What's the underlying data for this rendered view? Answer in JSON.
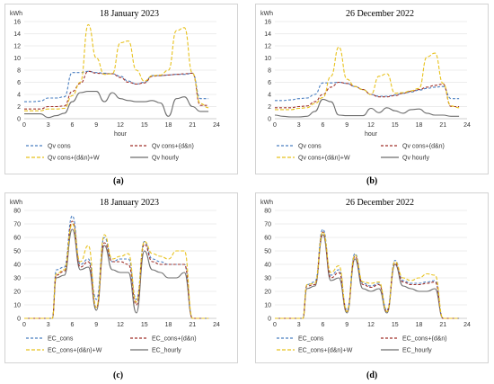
{
  "chart_data": [
    {
      "type": "line",
      "panel_label": "(a)",
      "title": "18 January 2023",
      "unit": "kWh",
      "xlabel": "hour",
      "xlim": [
        0,
        24
      ],
      "ylim": [
        0,
        16
      ],
      "xticks": [
        0,
        3,
        6,
        9,
        12,
        15,
        18,
        21,
        24
      ],
      "yticks": [
        0,
        2,
        4,
        6,
        8,
        10,
        12,
        14,
        16
      ],
      "legend_position": "bottom",
      "x": [
        0,
        1,
        2,
        3,
        4,
        5,
        6,
        7,
        8,
        9,
        10,
        11,
        12,
        13,
        14,
        15,
        16,
        17,
        18,
        19,
        20,
        21,
        22,
        23
      ],
      "series": [
        {
          "name": "Qv cons",
          "color": "#4a7fc1",
          "dash": "3,2",
          "values": [
            2.8,
            2.8,
            2.9,
            3.4,
            3.4,
            3.6,
            7.6,
            7.6,
            7.8,
            7.6,
            7.5,
            7.4,
            7.0,
            6.2,
            5.7,
            6.0,
            7.1,
            7.1,
            7.2,
            7.3,
            7.3,
            7.5,
            3.3,
            3.3
          ]
        },
        {
          "name": "Qv cons+(d&n)",
          "color": "#a0302a",
          "dash": "3,2",
          "values": [
            1.6,
            1.6,
            1.6,
            2.0,
            2.0,
            2.1,
            4.5,
            5.8,
            7.8,
            7.5,
            7.4,
            7.4,
            6.8,
            6.0,
            5.7,
            5.9,
            7.0,
            7.1,
            7.2,
            7.3,
            7.4,
            7.5,
            2.2,
            2.2
          ]
        },
        {
          "name": "Qv cons+(d&n)+W",
          "color": "#e8c21e",
          "dash": "4,2",
          "values": [
            1.3,
            1.3,
            1.3,
            1.6,
            1.6,
            1.7,
            3.8,
            6.0,
            15.5,
            10.0,
            7.3,
            7.4,
            12.5,
            12.8,
            8.0,
            6.2,
            7.1,
            7.2,
            8.0,
            14.5,
            15.0,
            7.5,
            2.5,
            1.8
          ]
        },
        {
          "name": "Qv hourly",
          "color": "#6e6e6e",
          "dash": "",
          "values": [
            0.8,
            0.8,
            0.8,
            0.2,
            0.5,
            0.9,
            2.8,
            4.3,
            4.5,
            4.5,
            2.8,
            4.3,
            3.3,
            3.0,
            2.8,
            2.8,
            3.0,
            2.6,
            0.4,
            3.3,
            3.6,
            2.0,
            1.2,
            1.2
          ]
        }
      ]
    },
    {
      "type": "line",
      "panel_label": "(b)",
      "title": "26 December 2022",
      "unit": "kWh",
      "xlabel": "hour",
      "xlim": [
        0,
        24
      ],
      "ylim": [
        0,
        16
      ],
      "xticks": [
        0,
        3,
        6,
        9,
        12,
        15,
        18,
        21,
        24
      ],
      "yticks": [
        0,
        2,
        4,
        6,
        8,
        10,
        12,
        14,
        16
      ],
      "legend_position": "bottom",
      "x": [
        0,
        1,
        2,
        3,
        4,
        5,
        6,
        7,
        8,
        9,
        10,
        11,
        12,
        13,
        14,
        15,
        16,
        17,
        18,
        19,
        20,
        21,
        22,
        23
      ],
      "series": [
        {
          "name": "Qv cons",
          "color": "#4a7fc1",
          "dash": "3,2",
          "values": [
            3.0,
            3.0,
            3.1,
            3.3,
            3.4,
            4.0,
            5.9,
            5.9,
            6.0,
            5.8,
            5.3,
            4.8,
            4.0,
            3.7,
            3.7,
            3.9,
            4.2,
            4.4,
            4.7,
            5.0,
            5.2,
            5.3,
            3.3,
            3.3
          ]
        },
        {
          "name": "Qv cons+(d&n)",
          "color": "#a0302a",
          "dash": "3,2",
          "values": [
            1.8,
            1.8,
            1.8,
            2.0,
            2.1,
            2.8,
            4.0,
            5.2,
            6.0,
            5.8,
            5.3,
            4.8,
            4.0,
            3.6,
            3.6,
            3.8,
            4.2,
            4.5,
            4.8,
            5.2,
            5.5,
            5.7,
            2.0,
            2.0
          ]
        },
        {
          "name": "Qv cons+(d&n)+W",
          "color": "#e8c21e",
          "dash": "4,2",
          "values": [
            1.5,
            1.5,
            1.5,
            1.7,
            1.8,
            2.5,
            3.5,
            7.0,
            11.8,
            6.5,
            5.3,
            4.8,
            4.0,
            7.0,
            7.4,
            4.2,
            4.3,
            4.6,
            5.0,
            10.2,
            10.8,
            5.8,
            2.1,
            1.8
          ]
        },
        {
          "name": "Qv hourly",
          "color": "#6e6e6e",
          "dash": "",
          "values": [
            0.6,
            0.4,
            0.3,
            0.3,
            0.4,
            1.2,
            3.2,
            2.8,
            0.6,
            0.5,
            0.5,
            0.5,
            1.7,
            1.0,
            1.8,
            1.3,
            0.9,
            1.5,
            1.6,
            0.9,
            0.6,
            0.6,
            0.4,
            0.4
          ]
        }
      ]
    },
    {
      "type": "line",
      "panel_label": "(c)",
      "title": "18 January 2023",
      "unit": "kWh",
      "xlabel": "",
      "xlim": [
        0,
        24
      ],
      "ylim": [
        0,
        80
      ],
      "xticks": [
        0,
        3,
        6,
        9,
        12,
        15,
        18,
        21,
        24
      ],
      "yticks": [
        0,
        10,
        20,
        30,
        40,
        50,
        60,
        70,
        80
      ],
      "legend_position": "bottom",
      "x": [
        0,
        1,
        2,
        3,
        3.5,
        4,
        5,
        6,
        7,
        8,
        9,
        10,
        11,
        12,
        13,
        14,
        15,
        16,
        17,
        18,
        19,
        20,
        21,
        22,
        23
      ],
      "series": [
        {
          "name": "EC_cons",
          "color": "#4a7fc1",
          "dash": "3,2",
          "values": [
            0,
            0,
            0,
            0,
            0,
            36,
            38,
            76,
            40,
            44,
            14,
            60,
            42,
            44,
            44,
            14,
            57,
            44,
            42,
            40,
            40,
            40,
            0,
            0,
            0
          ]
        },
        {
          "name": "EC_cons+(d&n)",
          "color": "#a0302a",
          "dash": "3,2",
          "values": [
            0,
            0,
            0,
            0,
            0,
            32,
            35,
            72,
            38,
            42,
            8,
            56,
            42,
            42,
            40,
            10,
            55,
            42,
            40,
            40,
            40,
            40,
            0,
            0,
            0
          ]
        },
        {
          "name": "EC_cons+(d&n)+W",
          "color": "#e8c21e",
          "dash": "4,2",
          "values": [
            0,
            0,
            0,
            0,
            0,
            33,
            36,
            70,
            42,
            54,
            8,
            62,
            44,
            46,
            48,
            12,
            57,
            48,
            46,
            44,
            50,
            50,
            0,
            0,
            0
          ]
        },
        {
          "name": "EC_hourly",
          "color": "#6e6e6e",
          "dash": "",
          "values": [
            0,
            0,
            0,
            0,
            0,
            30,
            32,
            66,
            36,
            38,
            6,
            54,
            36,
            34,
            34,
            4,
            50,
            36,
            34,
            30,
            30,
            34,
            0,
            0,
            0
          ]
        }
      ]
    },
    {
      "type": "line",
      "panel_label": "(d)",
      "title": "26 December 2022",
      "unit": "kWh",
      "xlabel": "",
      "xlim": [
        0,
        24
      ],
      "ylim": [
        0,
        80
      ],
      "xticks": [
        0,
        3,
        6,
        9,
        12,
        15,
        18,
        21,
        24
      ],
      "yticks": [
        0,
        10,
        20,
        30,
        40,
        50,
        60,
        70,
        80
      ],
      "legend_position": "bottom",
      "x": [
        0,
        1,
        2,
        3,
        3.5,
        4,
        5,
        6,
        7,
        8,
        9,
        10,
        11,
        12,
        13,
        14,
        15,
        16,
        17,
        18,
        19,
        20,
        21,
        22,
        23
      ],
      "series": [
        {
          "name": "EC_cons",
          "color": "#4a7fc1",
          "dash": "3,2",
          "values": [
            0,
            0,
            0,
            0,
            0,
            25,
            27,
            66,
            32,
            36,
            6,
            48,
            26,
            24,
            26,
            6,
            43,
            28,
            26,
            26,
            27,
            28,
            0,
            0,
            0
          ]
        },
        {
          "name": "EC_cons+(d&n)",
          "color": "#a0302a",
          "dash": "3,2",
          "values": [
            0,
            0,
            0,
            0,
            0,
            24,
            25,
            64,
            30,
            34,
            5,
            46,
            25,
            23,
            25,
            5,
            41,
            27,
            25,
            25,
            26,
            27,
            0,
            0,
            0
          ]
        },
        {
          "name": "EC_cons+(d&n)+W",
          "color": "#e8c21e",
          "dash": "4,2",
          "values": [
            0,
            0,
            0,
            0,
            0,
            25,
            26,
            64,
            34,
            39,
            5,
            47,
            27,
            26,
            27,
            5,
            42,
            30,
            28,
            30,
            33,
            32,
            0,
            0,
            0
          ]
        },
        {
          "name": "EC_hourly",
          "color": "#6e6e6e",
          "dash": "",
          "values": [
            0,
            0,
            0,
            0,
            0,
            22,
            24,
            62,
            28,
            30,
            4,
            44,
            22,
            20,
            22,
            4,
            40,
            24,
            22,
            20,
            20,
            22,
            0,
            0,
            0
          ]
        }
      ]
    }
  ]
}
